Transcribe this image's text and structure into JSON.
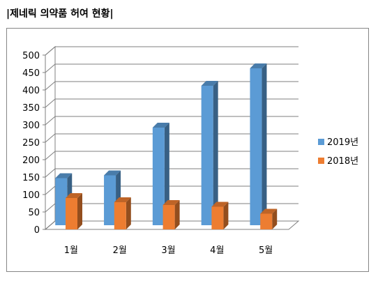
{
  "page": {
    "title": "|제네릭 의약품 허여 현황|"
  },
  "chart_data": {
    "type": "bar",
    "style": "3d-clustered-column",
    "categories": [
      "1월",
      "2월",
      "3월",
      "4월",
      "5월"
    ],
    "series": [
      {
        "name": "2019년",
        "values": [
          135,
          143,
          280,
          400,
          450
        ],
        "color": "#5B9BD5"
      },
      {
        "name": "2018년",
        "values": [
          90,
          78,
          70,
          65,
          45
        ],
        "color": "#ED7D31"
      }
    ],
    "ylim": [
      0,
      500
    ],
    "yticks": [
      0,
      50,
      100,
      150,
      200,
      250,
      300,
      350,
      400,
      450,
      500
    ],
    "grid": true,
    "legend_position": "right",
    "title": "",
    "xlabel": "",
    "ylabel": ""
  }
}
